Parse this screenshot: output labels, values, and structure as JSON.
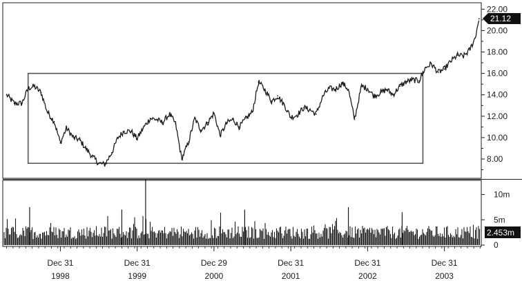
{
  "chart_data": {
    "type": "line",
    "price": {
      "y_ticks": [
        "8.00",
        "10.00",
        "12.00",
        "14.00",
        "16.00",
        "18.00",
        "20.00",
        "22.00"
      ],
      "ylim": [
        6.2,
        22.6
      ],
      "last_value": "21.12",
      "last_value_num": 21.12,
      "trading_range_box": {
        "x_start": 1997.58,
        "x_end": 2002.72,
        "y_low": 7.6,
        "y_high": 16.0
      },
      "series": [
        {
          "x": [
            1997.3,
            1997.4,
            1997.5,
            1997.58,
            1997.66,
            1997.75,
            1997.83,
            1997.92,
            1998.0,
            1998.08,
            1998.17,
            1998.25,
            1998.33,
            1998.42,
            1998.5,
            1998.58,
            1998.67,
            1998.75,
            1998.83,
            1998.92,
            1999.0,
            1999.08,
            1999.17,
            1999.25,
            1999.33,
            1999.42,
            1999.5,
            1999.58,
            1999.67,
            1999.75,
            1999.83,
            1999.92,
            2000.0,
            2000.08,
            2000.17,
            2000.25,
            2000.33,
            2000.42,
            2000.5,
            2000.58,
            2000.67,
            2000.75,
            2000.83,
            2000.92,
            2001.0,
            2001.08,
            2001.17,
            2001.25,
            2001.33,
            2001.42,
            2001.5,
            2001.58,
            2001.67,
            2001.75,
            2001.83,
            2001.92,
            2002.0,
            2002.08,
            2002.17,
            2002.25,
            2002.33,
            2002.42,
            2002.5,
            2002.58,
            2002.67,
            2002.75,
            2002.83,
            2002.92,
            2003.0,
            2003.08,
            2003.17,
            2003.25,
            2003.33,
            2003.4,
            2003.45
          ],
          "y": [
            14.0,
            13.2,
            13.2,
            14.6,
            14.8,
            14.2,
            12.4,
            11.5,
            9.5,
            10.9,
            10.0,
            9.8,
            9.0,
            8.2,
            7.6,
            7.5,
            8.6,
            10.0,
            10.6,
            10.6,
            9.9,
            10.9,
            11.8,
            11.7,
            11.4,
            12.2,
            11.3,
            8.0,
            9.6,
            11.8,
            10.7,
            11.4,
            12.3,
            10.2,
            11.4,
            11.7,
            11.0,
            11.8,
            12.4,
            15.2,
            14.4,
            13.4,
            13.9,
            13.0,
            11.9,
            12.1,
            12.8,
            12.6,
            12.2,
            13.9,
            14.6,
            14.5,
            15.1,
            14.5,
            11.7,
            14.8,
            14.6,
            13.9,
            14.2,
            14.5,
            14.0,
            14.8,
            15.2,
            15.4,
            15.3,
            16.5,
            16.9,
            16.1,
            16.4,
            17.1,
            17.7,
            17.6,
            18.2,
            19.3,
            21.1
          ]
        }
      ]
    },
    "volume": {
      "y_ticks": [
        "0",
        "5m",
        "10m"
      ],
      "ylim": [
        0,
        12.8
      ],
      "last_value": "2.453m",
      "bars": [
        {
          "x": 1997.6,
          "v": 7.5
        },
        {
          "x": 1998.8,
          "v": 7.0
        },
        {
          "x": 1999.11,
          "v": 13.0
        },
        {
          "x": 2000.4,
          "v": 7.0
        },
        {
          "x": 2001.75,
          "v": 7.5
        },
        {
          "x": 2002.45,
          "v": 6.5
        }
      ]
    },
    "x_ticks": [
      {
        "x": 1998.0,
        "line1": "Dec 31",
        "line2": "1998"
      },
      {
        "x": 1999.0,
        "line1": "Dec 31",
        "line2": "1999"
      },
      {
        "x": 2000.0,
        "line1": "Dec 29",
        "line2": "2000"
      },
      {
        "x": 2001.0,
        "line1": "Dec 31",
        "line2": "2001"
      },
      {
        "x": 2002.0,
        "line1": "Dec 31",
        "line2": "2002"
      },
      {
        "x": 2003.0,
        "line1": "Dec 31",
        "line2": "2003"
      }
    ],
    "xlim": [
      1997.25,
      2003.48
    ],
    "grid": false,
    "colors": {
      "ink": "#1a1a1a",
      "box": "#555555",
      "tag_bg": "#111111",
      "tag_fg": "#ffffff"
    }
  }
}
